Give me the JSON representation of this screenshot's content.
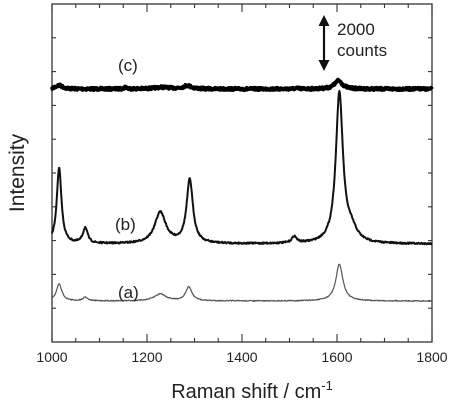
{
  "chart_data": {
    "type": "line",
    "xlabel": "Raman shift / cm",
    "xlabel_superscript": "-1",
    "ylabel": "Intensity",
    "xlim": [
      1000,
      1800
    ],
    "x_ticks": [
      1000,
      1200,
      1400,
      1600,
      1800
    ],
    "y_ticks_labeled": false,
    "grid": false,
    "scale_bar": {
      "value_label": "2000",
      "unit_label": "counts",
      "counts": 2000
    },
    "series": [
      {
        "name": "(c)",
        "color": "#000000",
        "linewidth_style": "thick",
        "baseline": 1,
        "peaks": [
          {
            "x": 1015,
            "height": 0.13,
            "width": 9
          },
          {
            "x": 1155,
            "height": 0.07,
            "width": 3
          },
          {
            "x": 1232,
            "height": 0.06,
            "width": 20
          },
          {
            "x": 1285,
            "height": 0.12,
            "width": 10
          },
          {
            "x": 1515,
            "height": 0.02,
            "width": 6
          },
          {
            "x": 1603,
            "height": 0.3,
            "width": 10
          }
        ]
      },
      {
        "name": "(b)",
        "color": "#111111",
        "linewidth_style": "medium",
        "baseline": 1,
        "peaks": [
          {
            "x": 1015,
            "height": 1.16,
            "width": 6
          },
          {
            "x": 1070,
            "height": 0.24,
            "width": 6
          },
          {
            "x": 1228,
            "height": 0.48,
            "width": 14
          },
          {
            "x": 1290,
            "height": 0.98,
            "width": 8
          },
          {
            "x": 1510,
            "height": 0.1,
            "width": 6
          },
          {
            "x": 1605,
            "height": 2.3,
            "width": 9
          },
          {
            "x": 1630,
            "height": 0.18,
            "width": 14
          }
        ]
      },
      {
        "name": "(a)",
        "color": "#555555",
        "linewidth_style": "thin",
        "baseline": 1,
        "peaks": [
          {
            "x": 1015,
            "height": 0.27,
            "width": 7
          },
          {
            "x": 1070,
            "height": 0.06,
            "width": 6
          },
          {
            "x": 1228,
            "height": 0.11,
            "width": 15
          },
          {
            "x": 1288,
            "height": 0.22,
            "width": 8
          },
          {
            "x": 1605,
            "height": 0.58,
            "width": 9
          }
        ]
      }
    ]
  }
}
